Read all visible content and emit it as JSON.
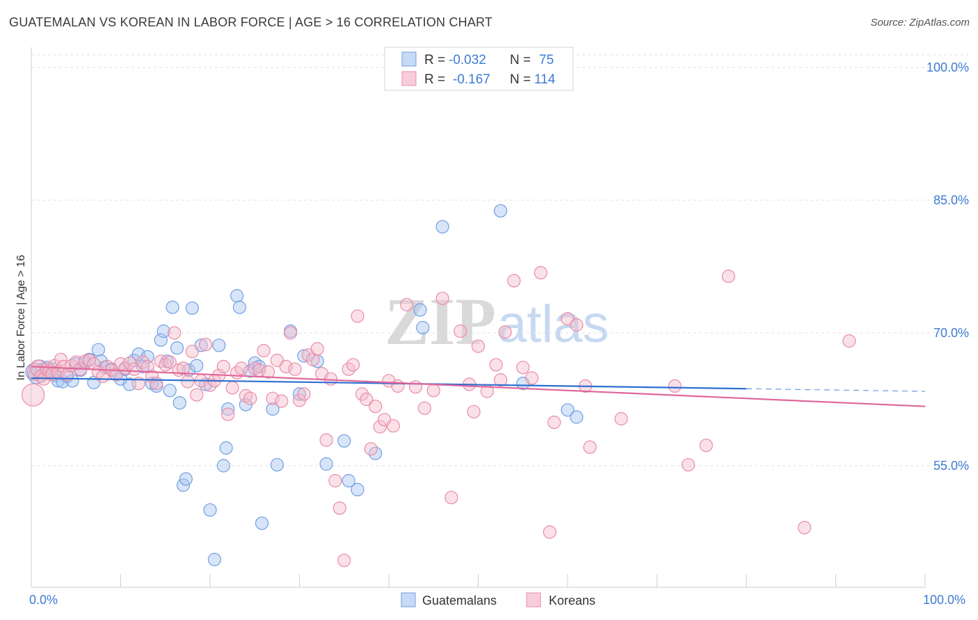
{
  "header": {
    "title": "GUATEMALAN VS KOREAN IN LABOR FORCE | AGE > 16 CORRELATION CHART",
    "source": "Source: ZipAtlas.com"
  },
  "watermark": {
    "part1": "ZIP",
    "part2": "atlas"
  },
  "chart_data": {
    "type": "scatter",
    "title": "GUATEMALAN VS KOREAN IN LABOR FORCE | AGE > 16 CORRELATION CHART",
    "xlabel": "",
    "ylabel": "In Labor Force | Age > 16",
    "xlim": [
      0,
      100
    ],
    "ylim": [
      40,
      105
    ],
    "y_ticks": [
      {
        "value": 100,
        "label": "100.0%"
      },
      {
        "value": 85,
        "label": "85.0%"
      },
      {
        "value": 70,
        "label": "70.0%"
      },
      {
        "value": 55,
        "label": "55.0%"
      }
    ],
    "x_tick_labels": {
      "min": "0.0%",
      "max": "100.0%"
    },
    "grid": true,
    "legend_position": "bottom-center",
    "stats": [
      {
        "series": "Guatemalans",
        "r_label": "R =",
        "r_value": "-0.032",
        "n_label": "N =",
        "n_value": "75"
      },
      {
        "series": "Koreans",
        "r_label": "R =",
        "r_value": "-0.167",
        "n_label": "N =",
        "n_value": "114"
      }
    ],
    "series": [
      {
        "name": "Guatemalans",
        "color": "#6f9fe3",
        "fill": "#a9c6ef",
        "line_color": "#2e6fd0",
        "trend": {
          "x0": 0,
          "y0": 64.9,
          "x1": 80,
          "y1": 63.7,
          "dash_to": 100,
          "dash_y": 63.4
        },
        "points": [
          [
            0.3,
            65.6
          ],
          [
            0.6,
            65.2
          ],
          [
            0.9,
            66.0
          ],
          [
            1.2,
            65.8
          ],
          [
            1.5,
            65.4
          ],
          [
            1.8,
            66.1
          ],
          [
            2.1,
            65.7
          ],
          [
            2.4,
            65.9
          ],
          [
            2.7,
            65.2
          ],
          [
            3.0,
            64.6
          ],
          [
            3.5,
            64.5
          ],
          [
            4.0,
            65.1
          ],
          [
            4.6,
            64.6
          ],
          [
            5.0,
            66.5
          ],
          [
            5.5,
            65.8
          ],
          [
            6.0,
            66.6
          ],
          [
            6.5,
            67.0
          ],
          [
            7.0,
            64.4
          ],
          [
            7.5,
            68.1
          ],
          [
            7.8,
            66.8
          ],
          [
            8.2,
            66.1
          ],
          [
            9.0,
            65.9
          ],
          [
            9.5,
            65.3
          ],
          [
            10.0,
            64.8
          ],
          [
            10.5,
            65.9
          ],
          [
            11.0,
            64.2
          ],
          [
            11.5,
            66.9
          ],
          [
            12.0,
            67.6
          ],
          [
            12.5,
            66.2
          ],
          [
            13.0,
            67.3
          ],
          [
            13.5,
            64.3
          ],
          [
            14.0,
            64.0
          ],
          [
            14.5,
            69.2
          ],
          [
            14.8,
            70.2
          ],
          [
            15.2,
            66.8
          ],
          [
            15.5,
            63.5
          ],
          [
            15.8,
            72.9
          ],
          [
            16.3,
            68.3
          ],
          [
            16.6,
            62.1
          ],
          [
            17.0,
            52.8
          ],
          [
            17.3,
            53.5
          ],
          [
            17.6,
            65.8
          ],
          [
            18.0,
            72.8
          ],
          [
            18.5,
            66.3
          ],
          [
            19.0,
            68.6
          ],
          [
            19.5,
            64.2
          ],
          [
            20.0,
            50.0
          ],
          [
            20.5,
            44.4
          ],
          [
            21.0,
            68.6
          ],
          [
            21.5,
            55.0
          ],
          [
            21.8,
            57.0
          ],
          [
            22.0,
            61.4
          ],
          [
            23.0,
            74.2
          ],
          [
            23.3,
            72.9
          ],
          [
            24.0,
            61.9
          ],
          [
            24.5,
            65.7
          ],
          [
            25.0,
            66.6
          ],
          [
            25.5,
            66.2
          ],
          [
            25.8,
            48.5
          ],
          [
            27.0,
            61.4
          ],
          [
            27.5,
            55.1
          ],
          [
            29.0,
            70.2
          ],
          [
            30.0,
            63.1
          ],
          [
            30.5,
            67.4
          ],
          [
            32.0,
            66.8
          ],
          [
            33.0,
            55.2
          ],
          [
            35.0,
            57.8
          ],
          [
            35.5,
            53.3
          ],
          [
            36.5,
            52.3
          ],
          [
            38.5,
            56.4
          ],
          [
            43.5,
            72.6
          ],
          [
            43.8,
            70.6
          ],
          [
            46.0,
            82.0
          ],
          [
            52.5,
            83.8
          ],
          [
            55.0,
            64.3
          ],
          [
            60.0,
            61.3
          ],
          [
            61.0,
            60.5
          ]
        ]
      },
      {
        "name": "Koreans",
        "color": "#e98ba7",
        "fill": "#f4bccd",
        "line_color": "#e0679a",
        "trend": {
          "x0": 0,
          "y0": 66.2,
          "x1": 100,
          "y1": 61.7
        },
        "points": [
          [
            0.2,
            63.0
          ],
          [
            0.5,
            65.6
          ],
          [
            0.8,
            66.0
          ],
          [
            1.1,
            65.1
          ],
          [
            1.4,
            64.8
          ],
          [
            1.7,
            65.9
          ],
          [
            2.0,
            65.7
          ],
          [
            2.3,
            65.3
          ],
          [
            2.6,
            66.3
          ],
          [
            3.0,
            65.6
          ],
          [
            3.3,
            67.0
          ],
          [
            3.6,
            66.2
          ],
          [
            4.0,
            65.3
          ],
          [
            4.5,
            66.3
          ],
          [
            5.0,
            66.7
          ],
          [
            5.5,
            65.9
          ],
          [
            6.0,
            66.8
          ],
          [
            6.5,
            66.9
          ],
          [
            7.0,
            66.5
          ],
          [
            7.5,
            65.6
          ],
          [
            8.0,
            65.1
          ],
          [
            8.5,
            66.2
          ],
          [
            9.0,
            65.8
          ],
          [
            9.5,
            65.3
          ],
          [
            10.0,
            66.5
          ],
          [
            10.5,
            66.0
          ],
          [
            11.0,
            66.6
          ],
          [
            11.5,
            65.9
          ],
          [
            12.0,
            64.3
          ],
          [
            12.5,
            66.7
          ],
          [
            13.0,
            66.2
          ],
          [
            13.5,
            65.1
          ],
          [
            14.0,
            64.3
          ],
          [
            14.5,
            66.8
          ],
          [
            15.0,
            66.4
          ],
          [
            15.5,
            66.7
          ],
          [
            16.0,
            70.0
          ],
          [
            16.5,
            65.8
          ],
          [
            17.0,
            66.0
          ],
          [
            17.5,
            64.5
          ],
          [
            18.0,
            67.9
          ],
          [
            18.5,
            63.0
          ],
          [
            19.0,
            64.6
          ],
          [
            19.5,
            68.7
          ],
          [
            20.0,
            64.1
          ],
          [
            20.5,
            64.6
          ],
          [
            21.0,
            65.2
          ],
          [
            21.5,
            66.2
          ],
          [
            22.0,
            60.8
          ],
          [
            22.5,
            63.8
          ],
          [
            23.0,
            65.5
          ],
          [
            23.5,
            66.0
          ],
          [
            24.0,
            62.9
          ],
          [
            24.5,
            62.6
          ],
          [
            25.0,
            66.0
          ],
          [
            25.5,
            65.8
          ],
          [
            26.0,
            68.0
          ],
          [
            26.5,
            65.6
          ],
          [
            27.0,
            62.6
          ],
          [
            27.5,
            66.9
          ],
          [
            28.0,
            62.3
          ],
          [
            28.5,
            66.2
          ],
          [
            29.0,
            70.0
          ],
          [
            29.5,
            65.9
          ],
          [
            30.0,
            62.4
          ],
          [
            30.5,
            63.1
          ],
          [
            31.0,
            67.5
          ],
          [
            31.5,
            67.0
          ],
          [
            32.0,
            68.2
          ],
          [
            32.5,
            65.4
          ],
          [
            33.0,
            57.9
          ],
          [
            33.5,
            64.8
          ],
          [
            34.0,
            53.3
          ],
          [
            34.5,
            50.2
          ],
          [
            35.0,
            44.3
          ],
          [
            35.5,
            65.9
          ],
          [
            36.0,
            66.4
          ],
          [
            36.5,
            71.9
          ],
          [
            37.0,
            63.1
          ],
          [
            37.5,
            62.5
          ],
          [
            38.0,
            56.9
          ],
          [
            38.5,
            61.7
          ],
          [
            39.0,
            59.4
          ],
          [
            39.5,
            60.2
          ],
          [
            40.0,
            64.6
          ],
          [
            40.5,
            59.5
          ],
          [
            41.0,
            64.0
          ],
          [
            42.0,
            73.2
          ],
          [
            43.0,
            63.9
          ],
          [
            44.0,
            61.5
          ],
          [
            45.0,
            63.5
          ],
          [
            46.0,
            73.9
          ],
          [
            47.0,
            51.4
          ],
          [
            48.0,
            70.2
          ],
          [
            49.0,
            64.2
          ],
          [
            49.5,
            61.1
          ],
          [
            50.0,
            68.5
          ],
          [
            51.0,
            63.4
          ],
          [
            52.0,
            66.4
          ],
          [
            52.5,
            64.7
          ],
          [
            53.0,
            70.1
          ],
          [
            54.0,
            75.9
          ],
          [
            55.0,
            66.1
          ],
          [
            56.0,
            64.9
          ],
          [
            57.0,
            76.8
          ],
          [
            58.0,
            47.5
          ],
          [
            58.5,
            59.9
          ],
          [
            60.0,
            71.6
          ],
          [
            61.0,
            70.9
          ],
          [
            62.0,
            64.0
          ],
          [
            62.5,
            57.1
          ],
          [
            66.0,
            60.3
          ],
          [
            72.0,
            64.0
          ],
          [
            73.5,
            55.1
          ],
          [
            75.5,
            57.3
          ],
          [
            86.5,
            48.0
          ],
          [
            91.5,
            69.1
          ],
          [
            78.0,
            76.4
          ]
        ]
      }
    ]
  }
}
